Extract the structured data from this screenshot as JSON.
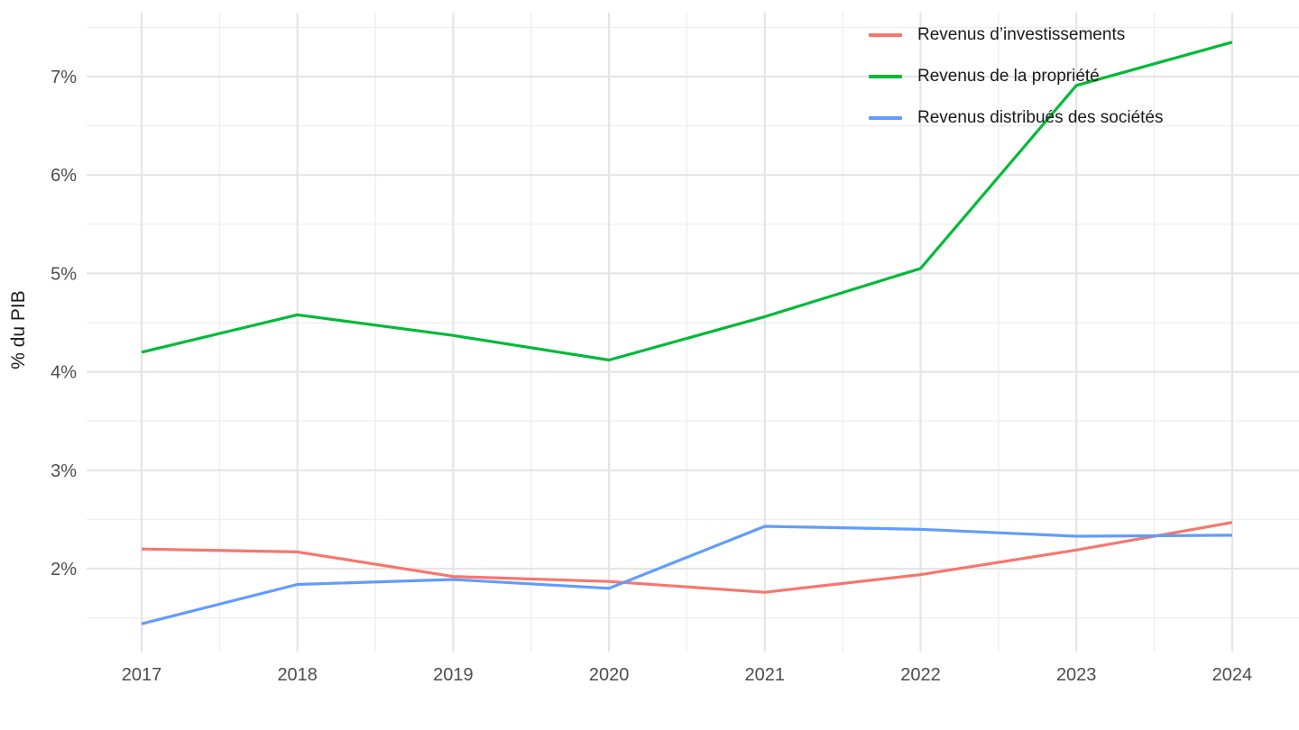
{
  "chart_data": {
    "type": "line",
    "title": "",
    "xlabel": "",
    "ylabel": "% du PIB",
    "x": [
      2017,
      2018,
      2019,
      2020,
      2021,
      2022,
      2023,
      2024
    ],
    "x_tick_labels": [
      "2017",
      "2018",
      "2019",
      "2020",
      "2021",
      "2022",
      "2023",
      "2024"
    ],
    "y_tick_values": [
      2,
      3,
      4,
      5,
      6,
      7
    ],
    "y_tick_labels": [
      "2%",
      "3%",
      "4%",
      "5%",
      "6%",
      "7%"
    ],
    "y_minor_values": [
      1.5,
      2.5,
      3.5,
      4.5,
      5.5,
      6.5,
      7.5
    ],
    "x_minor_values": [
      2017.5,
      2018.5,
      2019.5,
      2020.5,
      2021.5,
      2022.5,
      2023.5
    ],
    "ylim": [
      1.3,
      7.66
    ],
    "grid": "major and minor gridlines, light gray on white",
    "legend_position": "top-right inside plot area",
    "series": [
      {
        "name": "Revenus d’investissements",
        "color": "#F8766D",
        "values": [
          2.2,
          2.17,
          1.92,
          1.87,
          1.76,
          1.94,
          2.19,
          2.47
        ]
      },
      {
        "name": "Revenus de la propriété",
        "color": "#00BA38",
        "values": [
          4.2,
          4.58,
          4.37,
          4.12,
          4.56,
          5.05,
          6.91,
          7.35
        ]
      },
      {
        "name": "Revenus distribués des sociétés",
        "color": "#619CFF",
        "values": [
          1.44,
          1.84,
          1.89,
          1.8,
          2.43,
          2.4,
          2.33,
          2.34
        ]
      }
    ],
    "colors": {
      "background": "#FFFFFF",
      "grid_major": "#E5E5E5",
      "grid_minor": "#EFEFEF",
      "tick_text": "#4D4D4D",
      "label_text": "#1A1A1A"
    }
  }
}
